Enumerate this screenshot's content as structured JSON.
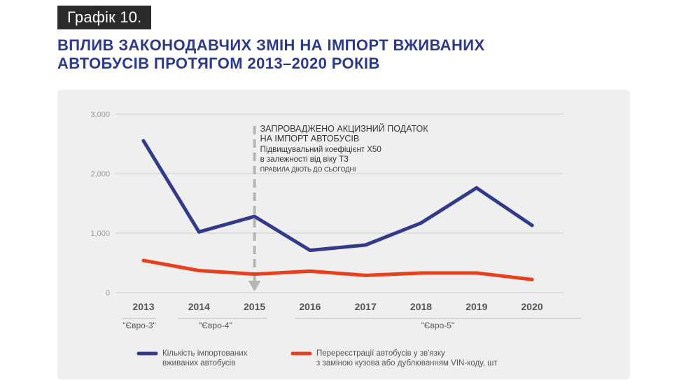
{
  "badge": "Графік 10.",
  "title_line1": "ВПЛИВ ЗАКОНОДАВЧИХ ЗМІН НА ІМПОРТ ВЖИВАНИХ",
  "title_line2": "АВТОБУСІВ ПРОТЯГОМ 2013–2020 РОКІВ",
  "colors": {
    "title": "#2b3a8c",
    "series_imports": "#333a8a",
    "series_reregistrations": "#e8401c",
    "annotation_arrow": "#b5b5b5",
    "gridline": "#cfcfcf",
    "panel_background": "#efefef"
  },
  "chart_data": {
    "type": "line",
    "title": "ВПЛИВ ЗАКОНОДАВЧИХ ЗМІН НА ІМПОРТ ВЖИВАНИХ АВТОБУСІВ ПРОТЯГОМ 2013–2020 РОКІВ",
    "x": [
      "2013",
      "2014",
      "2015",
      "2016",
      "2017",
      "2018",
      "2019",
      "2020"
    ],
    "ylim": [
      0,
      3000
    ],
    "yticks": [
      0,
      1000,
      2000,
      3000
    ],
    "ytick_labels": [
      "0",
      "1,000",
      "2,000",
      "3,000"
    ],
    "grid": "horizontal",
    "legend_position": "bottom",
    "series": [
      {
        "name": "Кількість імпортованих вживаних автобусів",
        "legend_lines": [
          "Кількість імпортованих",
          "вживаних автобусів"
        ],
        "values": [
          2550,
          1020,
          1280,
          710,
          800,
          1170,
          1760,
          1130
        ]
      },
      {
        "name": "Перереєстрації автобусів у зв'язку з заміною кузова або дублюванням VIN-коду, шт",
        "legend_lines": [
          "Перереєстрації автобусів у зв'язку",
          "з заміною кузова або дублюванням VIN-коду, шт"
        ],
        "values": [
          540,
          370,
          310,
          360,
          290,
          330,
          330,
          220
        ]
      }
    ],
    "euro_standards": [
      {
        "label": "\"Євро-3\"",
        "from": "2013",
        "to": "2013"
      },
      {
        "label": "\"Євро-4\"",
        "from": "2014",
        "to": "2015"
      },
      {
        "label": "\"Євро-5\"",
        "from": "2016",
        "to": "2020"
      }
    ],
    "annotation": {
      "x": "2015",
      "lines": [
        "ЗАПРОВАДЖЕНО АКЦИЗНИЙ ПОДАТОК",
        "НА ІМПОРТ АВТОБУСІВ",
        "Підвищувальний коефіцієнт X50",
        "в залежності від віку ТЗ",
        "ПРАВИЛА ДІЮТЬ ДО СЬОГОДНІ"
      ]
    }
  }
}
